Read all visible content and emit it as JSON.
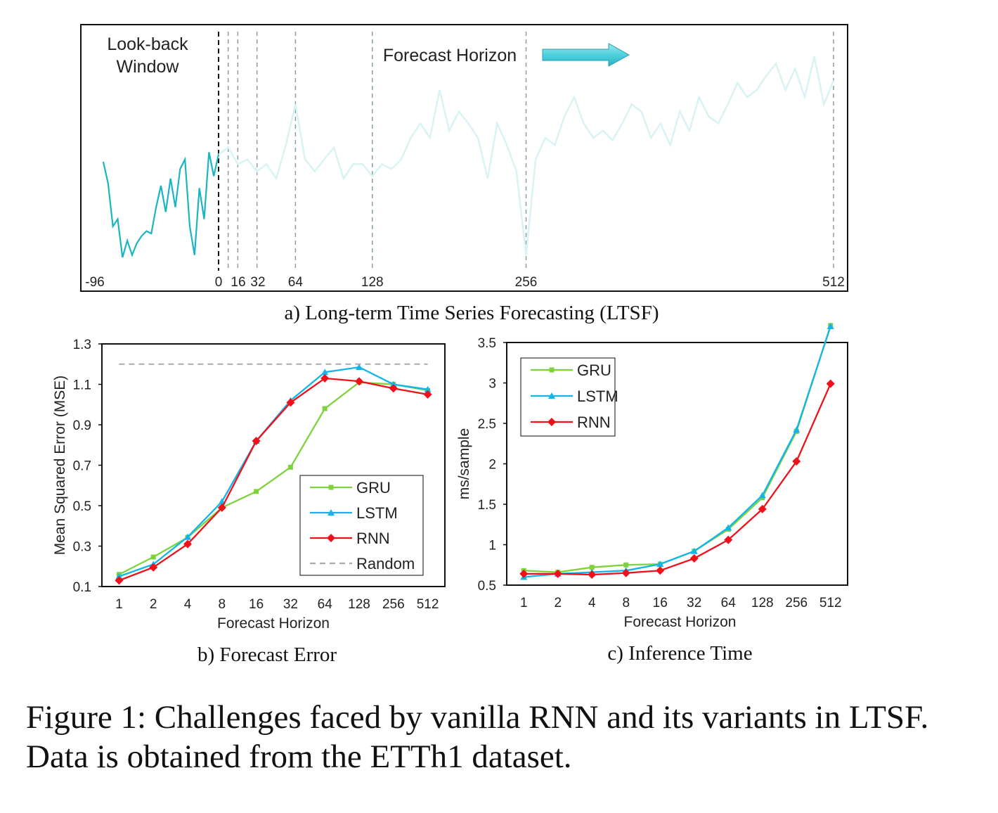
{
  "figure_caption": "Figure 1: Challenges faced by vanilla RNN and its variants in LTSF. Data is obtained from the ETTh1 dataset.",
  "chart_data": [
    {
      "id": "a",
      "type": "line",
      "caption": "a) Long-term Time Series Forecasting (LTSF)",
      "annotations": {
        "lookback": [
          "Look-back",
          "Window"
        ],
        "forecast": "Forecast Horizon"
      },
      "xticks": [
        -96,
        0,
        16,
        32,
        64,
        128,
        256,
        512
      ],
      "xtick_labels": [
        "-96",
        "0",
        "16",
        "32",
        "64",
        "128",
        "256",
        "512"
      ],
      "horizon_markers": [
        8,
        16,
        32,
        64,
        128,
        256,
        512
      ],
      "xlim": [
        -96,
        512
      ],
      "ylim": [
        0,
        100
      ],
      "colors": {
        "lookback": "#1ab5c0",
        "forecast": "#d8f3f4",
        "arrow": "#4fd0dd"
      },
      "lookback_series": {
        "x_step": 4,
        "x_start": -96,
        "values": [
          50,
          41,
          23,
          26,
          10,
          17,
          11,
          16,
          19,
          21,
          20,
          31,
          40,
          29,
          43,
          31,
          47,
          51,
          23,
          11,
          39,
          26,
          54,
          44,
          53
        ]
      },
      "forecast_series": {
        "x_step": 8,
        "x_start": 0,
        "values": [
          53,
          56,
          49,
          51,
          46,
          49,
          43,
          57,
          74,
          51,
          46,
          51,
          56,
          43,
          49,
          49,
          44,
          49,
          47,
          51,
          60,
          66,
          60,
          80,
          63,
          71,
          66,
          60,
          43,
          66,
          57,
          46,
          11,
          51,
          60,
          57,
          69,
          77,
          66,
          60,
          63,
          59,
          66,
          74,
          71,
          60,
          66,
          57,
          71,
          63,
          77,
          69,
          66,
          74,
          83,
          77,
          80,
          86,
          91,
          80,
          89,
          77,
          94,
          74,
          84
        ]
      }
    },
    {
      "id": "b",
      "type": "line",
      "caption": "b) Forecast Error",
      "xlabel": "Forecast Horizon",
      "ylabel": "Mean Squared Error (MSE)",
      "categories": [
        "1",
        "2",
        "4",
        "8",
        "16",
        "32",
        "64",
        "128",
        "256",
        "512"
      ],
      "ylim": [
        0.1,
        1.3
      ],
      "yticks": [
        "0.1",
        "0.3",
        "0.5",
        "0.7",
        "0.9",
        "1.1",
        "1.3"
      ],
      "legend": "bottom-right",
      "series": [
        {
          "name": "GRU",
          "color": "#7ed23c",
          "marker": "square",
          "values": [
            0.16,
            0.246,
            0.343,
            0.49,
            0.57,
            0.69,
            0.98,
            1.11,
            1.1,
            1.07
          ]
        },
        {
          "name": "LSTM",
          "color": "#12b5ea",
          "marker": "triangle",
          "values": [
            0.15,
            0.21,
            0.345,
            0.52,
            0.82,
            1.02,
            1.16,
            1.185,
            1.1,
            1.075
          ]
        },
        {
          "name": "RNN",
          "color": "#f0101a",
          "marker": "diamond",
          "values": [
            0.13,
            0.195,
            0.31,
            0.49,
            0.82,
            1.01,
            1.13,
            1.115,
            1.08,
            1.05
          ]
        },
        {
          "name": "Random",
          "color": "#aaaaaa",
          "marker": "none",
          "dashed": true,
          "values": [
            1.2,
            1.2,
            1.2,
            1.2,
            1.2,
            1.2,
            1.2,
            1.2,
            1.2,
            1.2
          ]
        }
      ]
    },
    {
      "id": "c",
      "type": "line",
      "caption": "c) Inference Time",
      "xlabel": "Forecast Horizon",
      "ylabel": "ms/sample",
      "categories": [
        "1",
        "2",
        "4",
        "8",
        "16",
        "32",
        "64",
        "128",
        "256",
        "512"
      ],
      "ylim": [
        0.5,
        3.5
      ],
      "yticks": [
        "0.5",
        "1",
        "1.5",
        "2",
        "2.5",
        "3",
        "3.5"
      ],
      "legend": "top-left",
      "series": [
        {
          "name": "GRU",
          "color": "#7ed23c",
          "marker": "square",
          "values": [
            0.68,
            0.66,
            0.72,
            0.75,
            0.76,
            0.92,
            1.19,
            1.58,
            2.4,
            3.71
          ]
        },
        {
          "name": "LSTM",
          "color": "#12b5ea",
          "marker": "triangle",
          "values": [
            0.6,
            0.64,
            0.66,
            0.68,
            0.76,
            0.92,
            1.21,
            1.61,
            2.42,
            3.7
          ]
        },
        {
          "name": "RNN",
          "color": "#f0101a",
          "marker": "diamond",
          "values": [
            0.64,
            0.64,
            0.63,
            0.65,
            0.68,
            0.83,
            1.06,
            1.44,
            2.03,
            2.99
          ]
        }
      ]
    }
  ]
}
